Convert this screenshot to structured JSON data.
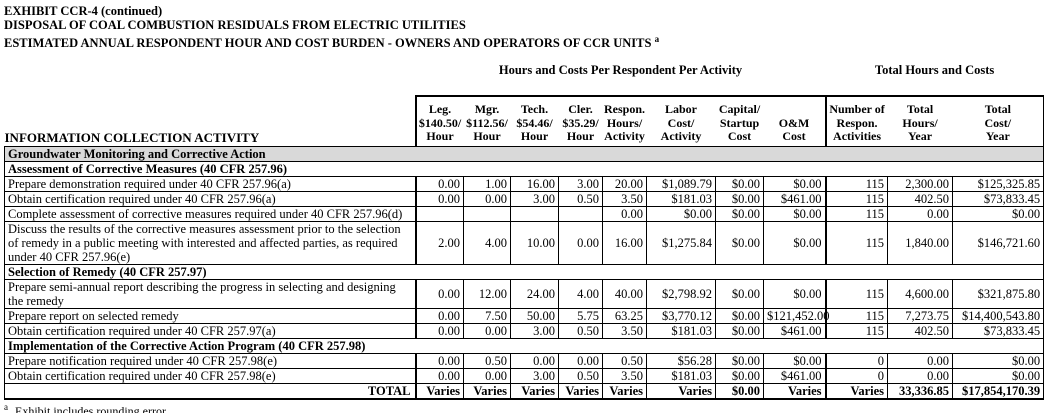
{
  "header": {
    "lines": [
      "EXHIBIT CCR-4 (continued)",
      "DISPOSAL OF COAL COMBUSTION RESIDUALS FROM ELECTRIC UTILITIES",
      "ESTIMATED ANNUAL RESPONDENT HOUR AND COST BURDEN - OWNERS AND OPERATORS OF CCR UNITS"
    ],
    "note_ref": "a"
  },
  "colors": {
    "section_gray": "#d9d9d9",
    "border": "#000000",
    "text": "#000000",
    "background": "#ffffff"
  },
  "table": {
    "group_headers": {
      "per_respondent": "Hours and Costs Per Respondent Per Activity",
      "totals": "Total Hours and Costs"
    },
    "columns": [
      {
        "id": "activity",
        "lines": [
          "INFORMATION COLLECTION ACTIVITY"
        ]
      },
      {
        "id": "leg-rate",
        "lines": [
          "Leg.",
          "$140.50/",
          "Hour"
        ]
      },
      {
        "id": "mgr-rate",
        "lines": [
          "Mgr.",
          "$112.56/",
          "Hour"
        ]
      },
      {
        "id": "tech-rate",
        "lines": [
          "Tech.",
          "$54.46/",
          "Hour"
        ]
      },
      {
        "id": "cler-rate",
        "lines": [
          "Cler.",
          "$35.29/",
          "Hour"
        ]
      },
      {
        "id": "respon-hours",
        "lines": [
          "Respon.",
          "Hours/",
          "Activity"
        ]
      },
      {
        "id": "labor-cost",
        "lines": [
          "Labor",
          "Cost/",
          "Activity"
        ]
      },
      {
        "id": "capital-startup",
        "lines": [
          "Capital/",
          "Startup",
          "Cost"
        ]
      },
      {
        "id": "om-cost",
        "lines": [
          "O&M",
          "Cost"
        ]
      },
      {
        "id": "num-activities",
        "lines": [
          "Number of",
          "Respon.",
          "Activities"
        ]
      },
      {
        "id": "total-hours",
        "lines": [
          "Total",
          "Hours/",
          "Year"
        ]
      },
      {
        "id": "total-cost",
        "lines": [
          "Total",
          "Cost/",
          "Year"
        ]
      }
    ],
    "rows": [
      {
        "type": "section_gray",
        "label": "Groundwater Monitoring and Corrective Action"
      },
      {
        "type": "section",
        "label": "Assessment of Corrective Measures (40 CFR 257.96)"
      },
      {
        "type": "data",
        "label": "Prepare demonstration required under 40 CFR 257.96(a)",
        "values": [
          "0.00",
          "1.00",
          "16.00",
          "3.00",
          "20.00",
          "$1,089.79",
          "$0.00",
          "$0.00",
          "115",
          "2,300.00",
          "$125,325.85"
        ]
      },
      {
        "type": "data",
        "label": "Obtain certification required under 40 CFR 257.96(a)",
        "values": [
          "0.00",
          "0.00",
          "3.00",
          "0.50",
          "3.50",
          "$181.03",
          "$0.00",
          "$461.00",
          "115",
          "402.50",
          "$73,833.45"
        ]
      },
      {
        "type": "data",
        "label": "Complete assessment of corrective measures required under 40 CFR 257.96(d)",
        "values": [
          "",
          "",
          "",
          "",
          "0.00",
          "$0.00",
          "$0.00",
          "$0.00",
          "115",
          "0.00",
          "$0.00"
        ]
      },
      {
        "type": "data",
        "label": "Discuss the results of the corrective measures assessment prior to the selection of remedy in a public meeting with interested and affected parties, as required under 40 CFR 257.96(e)",
        "values": [
          "2.00",
          "4.00",
          "10.00",
          "0.00",
          "16.00",
          "$1,275.84",
          "$0.00",
          "$0.00",
          "115",
          "1,840.00",
          "$146,721.60"
        ]
      },
      {
        "type": "section",
        "label": "Selection of Remedy (40 CFR 257.97)"
      },
      {
        "type": "data",
        "padded": true,
        "label": "Prepare semi-annual report describing the progress in selecting and designing the remedy",
        "values": [
          "0.00",
          "12.00",
          "24.00",
          "4.00",
          "40.00",
          "$2,798.92",
          "$0.00",
          "$0.00",
          "115",
          "4,600.00",
          "$321,875.80"
        ]
      },
      {
        "type": "data",
        "label": "Prepare report on selected remedy",
        "values": [
          "0.00",
          "7.50",
          "50.00",
          "5.75",
          "63.25",
          "$3,770.12",
          "$0.00",
          "$121,452.00",
          "115",
          "7,273.75",
          "$14,400,543.80"
        ]
      },
      {
        "type": "data",
        "label": "Obtain certification required under 40 CFR 257.97(a)",
        "values": [
          "0.00",
          "0.00",
          "3.00",
          "0.50",
          "3.50",
          "$181.03",
          "$0.00",
          "$461.00",
          "115",
          "402.50",
          "$73,833.45"
        ]
      },
      {
        "type": "section",
        "label": "Implementation of the Corrective Action Program (40 CFR 257.98)"
      },
      {
        "type": "data",
        "label": "Prepare notification required under 40 CFR 257.98(e)",
        "values": [
          "0.00",
          "0.50",
          "0.00",
          "0.00",
          "0.50",
          "$56.28",
          "$0.00",
          "$0.00",
          "0",
          "0.00",
          "$0.00"
        ]
      },
      {
        "type": "data",
        "label": "Obtain certification required under 40 CFR 257.98(e)",
        "values": [
          "0.00",
          "0.00",
          "3.00",
          "0.50",
          "3.50",
          "$181.03",
          "$0.00",
          "$461.00",
          "0",
          "0.00",
          "$0.00"
        ]
      },
      {
        "type": "total",
        "label": "TOTAL",
        "values": [
          "Varies",
          "Varies",
          "Varies",
          "Varies",
          "Varies",
          "Varies",
          "$0.00",
          "Varies",
          "Varies",
          "33,336.85",
          "$17,854,170.39"
        ]
      }
    ]
  },
  "footnote": {
    "ref": "a",
    "text": "Exhibit includes rounding error."
  }
}
